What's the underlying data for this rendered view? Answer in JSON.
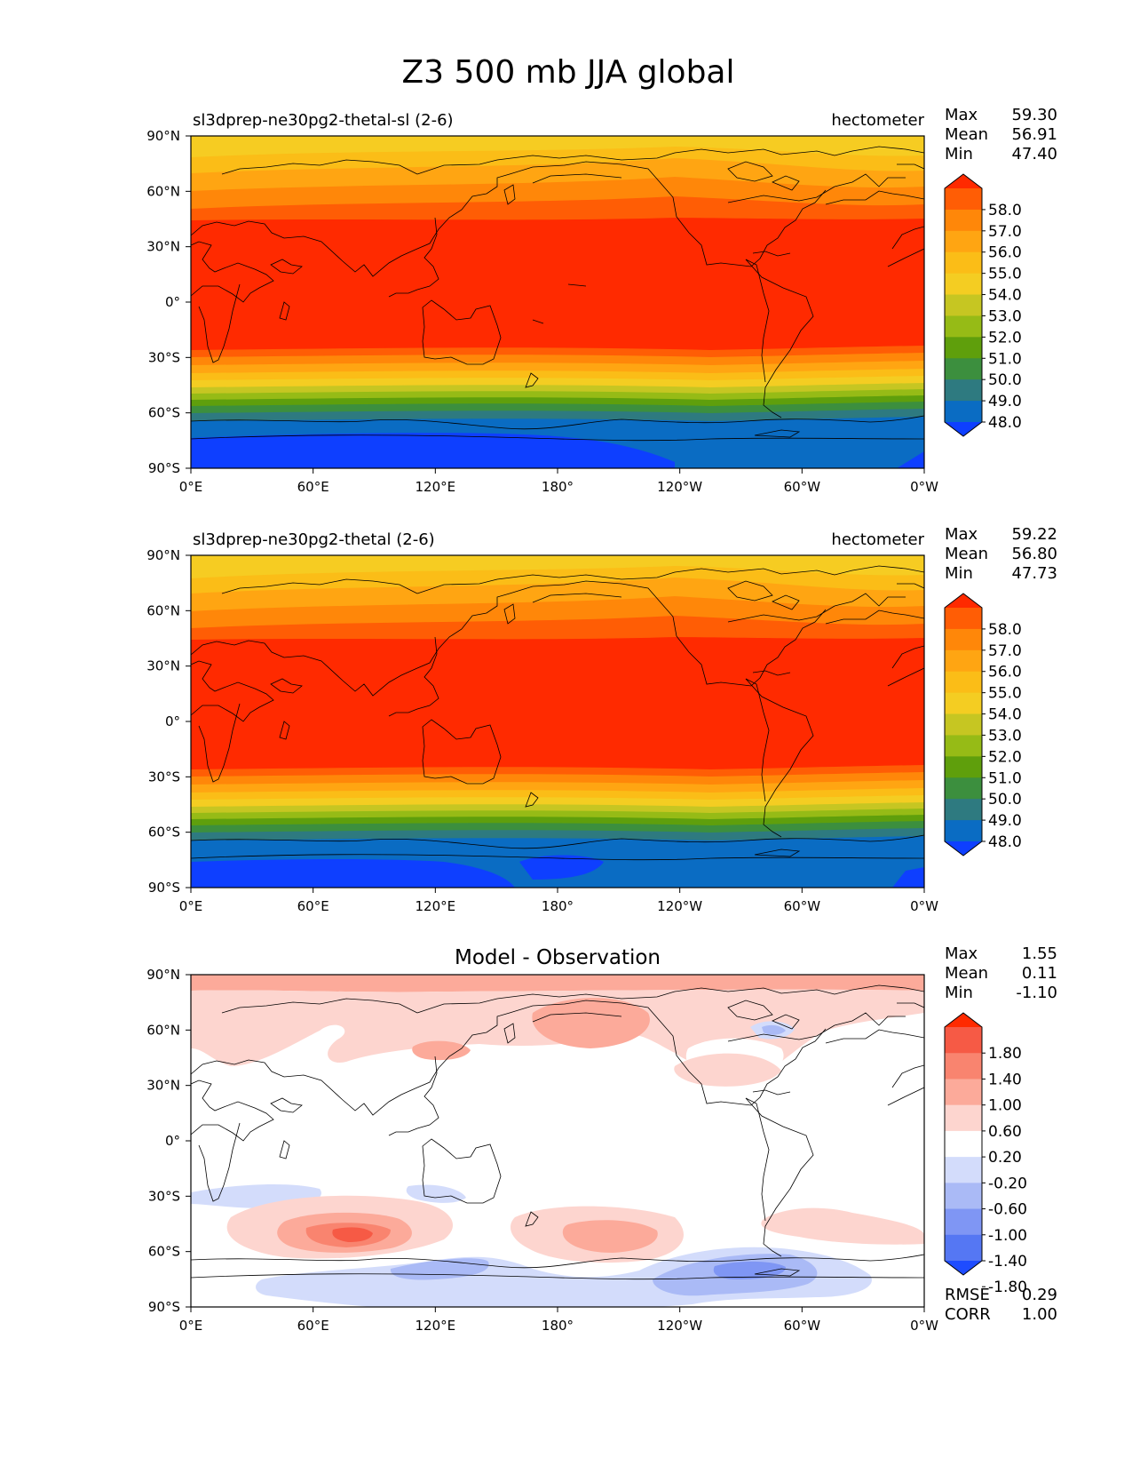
{
  "figure": {
    "title": "Z3 500 mb JJA global"
  },
  "axes": {
    "lat_ticks": [
      "90°N",
      "60°N",
      "30°N",
      "0°",
      "30°S",
      "60°S",
      "90°S"
    ],
    "lon_ticks": [
      "0°E",
      "60°E",
      "120°E",
      "180°",
      "120°W",
      "60°W",
      "0°W"
    ]
  },
  "panels": [
    {
      "id": "test",
      "left_title": "sl3dprep-ne30pg2-thetal-sl (2-6)",
      "center_title": "",
      "right_title": "hectometer",
      "stats": [
        {
          "label": "Max",
          "value": "59.30"
        },
        {
          "label": "Mean",
          "value": "56.91"
        },
        {
          "label": "Min",
          "value": "47.40"
        }
      ],
      "colorbar_ticks": [
        "58.0",
        "57.0",
        "56.0",
        "55.0",
        "54.0",
        "53.0",
        "52.0",
        "51.0",
        "50.0",
        "49.0",
        "48.0"
      ],
      "colorbar_colors": [
        "#ff2a00",
        "#ff5d05",
        "#ff8709",
        "#ffa512",
        "#fbbd17",
        "#f4cd22",
        "#c6c622",
        "#96bb16",
        "#5f9f0c",
        "#3c8f3e",
        "#2e7a80",
        "#0a6cc3",
        "#0e3fff"
      ],
      "metrics": []
    },
    {
      "id": "ref",
      "left_title": "sl3dprep-ne30pg2-thetal (2-6)",
      "center_title": "",
      "right_title": "hectometer",
      "stats": [
        {
          "label": "Max",
          "value": "59.22"
        },
        {
          "label": "Mean",
          "value": "56.80"
        },
        {
          "label": "Min",
          "value": "47.73"
        }
      ],
      "colorbar_ticks": [
        "58.0",
        "57.0",
        "56.0",
        "55.0",
        "54.0",
        "53.0",
        "52.0",
        "51.0",
        "50.0",
        "49.0",
        "48.0"
      ],
      "colorbar_colors": [
        "#ff2a00",
        "#ff5d05",
        "#ff8709",
        "#ffa512",
        "#fbbd17",
        "#f4cd22",
        "#c6c622",
        "#96bb16",
        "#5f9f0c",
        "#3c8f3e",
        "#2e7a80",
        "#0a6cc3",
        "#0e3fff"
      ],
      "metrics": []
    },
    {
      "id": "diff",
      "left_title": "",
      "center_title": "Model - Observation",
      "right_title": "",
      "stats": [
        {
          "label": "Max",
          "value": "1.55"
        },
        {
          "label": "Mean",
          "value": "0.11"
        },
        {
          "label": "Min",
          "value": "-1.10"
        }
      ],
      "colorbar_ticks": [
        "1.80",
        "1.40",
        "1.00",
        "0.60",
        "0.20",
        "-0.20",
        "-0.60",
        "-1.00",
        "-1.40",
        "-1.80"
      ],
      "colorbar_colors": [
        "#ff2a00",
        "#f65a45",
        "#f9846f",
        "#fcaa9a",
        "#fdd5cf",
        "#ffffff",
        "#d3dcfb",
        "#aabaf6",
        "#7f96f4",
        "#5577f3",
        "#1e4cff"
      ],
      "metrics": [
        {
          "label": "RMSE",
          "value": "0.29"
        },
        {
          "label": "CORR",
          "value": "1.00"
        }
      ]
    }
  ]
}
